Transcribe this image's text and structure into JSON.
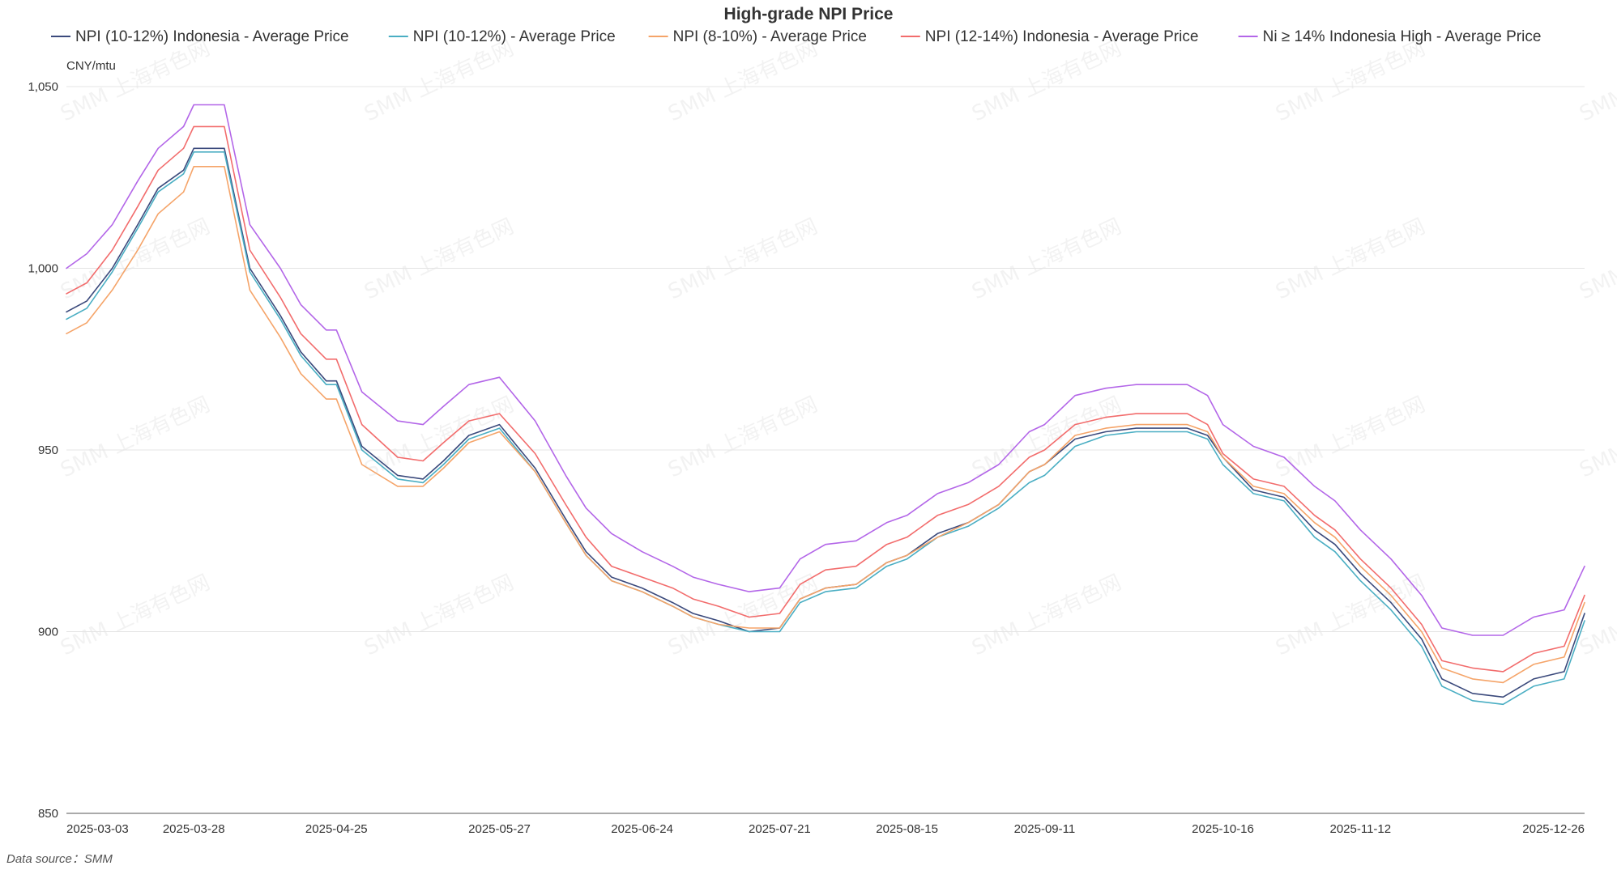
{
  "chart_data": {
    "type": "line",
    "title": "High-grade NPI Price",
    "ylabel": "CNY/mtu",
    "xlabel": "",
    "ylim": [
      850,
      1050
    ],
    "yticks": [
      850,
      900,
      950,
      1000,
      1050
    ],
    "ytick_labels": [
      "850",
      "900",
      "950",
      "1,000",
      "1,050"
    ],
    "x_tick_labels": [
      "2025-03-03",
      "2025-03-28",
      "2025-04-25",
      "2025-05-27",
      "2025-06-24",
      "2025-07-21",
      "2025-08-15",
      "2025-09-11",
      "2025-10-16",
      "2025-11-12",
      "2025-12-26"
    ],
    "grid": true,
    "legend_position": "top",
    "source": "Data source：SMM",
    "watermark": "SMM 上海有色网",
    "x": [
      "2025-03-03",
      "2025-03-07",
      "2025-03-12",
      "2025-03-17",
      "2025-03-21",
      "2025-03-26",
      "2025-03-28",
      "2025-04-03",
      "2025-04-08",
      "2025-04-14",
      "2025-04-18",
      "2025-04-23",
      "2025-04-25",
      "2025-04-30",
      "2025-05-07",
      "2025-05-12",
      "2025-05-16",
      "2025-05-21",
      "2025-05-27",
      "2025-06-03",
      "2025-06-09",
      "2025-06-13",
      "2025-06-18",
      "2025-06-24",
      "2025-06-30",
      "2025-07-04",
      "2025-07-09",
      "2025-07-15",
      "2025-07-21",
      "2025-07-25",
      "2025-07-30",
      "2025-08-05",
      "2025-08-11",
      "2025-08-15",
      "2025-08-21",
      "2025-08-27",
      "2025-09-02",
      "2025-09-08",
      "2025-09-11",
      "2025-09-17",
      "2025-09-23",
      "2025-09-29",
      "2025-10-09",
      "2025-10-13",
      "2025-10-16",
      "2025-10-22",
      "2025-10-28",
      "2025-11-03",
      "2025-11-07",
      "2025-11-12",
      "2025-11-18",
      "2025-11-24",
      "2025-11-28",
      "2025-12-04",
      "2025-12-10",
      "2025-12-16",
      "2025-12-22",
      "2025-12-26"
    ],
    "series": [
      {
        "name": "NPI (10-12%) Indonesia - Average Price",
        "color": "#3b4a7c",
        "values": [
          988,
          991,
          1000,
          1012,
          1022,
          1027,
          1033,
          1033,
          1000,
          987,
          977,
          969,
          969,
          951,
          943,
          942,
          947,
          954,
          957,
          945,
          931,
          922,
          915,
          912,
          908,
          905,
          903,
          900,
          901,
          909,
          912,
          913,
          919,
          921,
          927,
          930,
          935,
          944,
          946,
          953,
          955,
          956,
          956,
          954,
          948,
          939,
          937,
          928,
          924,
          916,
          908,
          898,
          887,
          883,
          882,
          887,
          889,
          905
        ]
      },
      {
        "name": "NPI (10-12%) - Average Price",
        "color": "#4aaec3",
        "values": [
          986,
          989,
          999,
          1011,
          1021,
          1026,
          1032,
          1032,
          999,
          986,
          976,
          968,
          968,
          950,
          942,
          941,
          946,
          953,
          956,
          944,
          930,
          921,
          914,
          911,
          907,
          904,
          902,
          900,
          900,
          908,
          911,
          912,
          918,
          920,
          926,
          929,
          934,
          941,
          943,
          951,
          954,
          955,
          955,
          953,
          946,
          938,
          936,
          926,
          922,
          914,
          906,
          896,
          885,
          881,
          880,
          885,
          887,
          903
        ]
      },
      {
        "name": "NPI (8-10%) - Average Price",
        "color": "#f5a469",
        "values": [
          982,
          985,
          994,
          1005,
          1015,
          1021,
          1028,
          1028,
          994,
          981,
          971,
          964,
          964,
          946,
          940,
          940,
          945,
          952,
          955,
          944,
          930,
          921,
          914,
          911,
          907,
          904,
          902,
          901,
          901,
          909,
          912,
          913,
          919,
          921,
          926,
          930,
          935,
          944,
          946,
          954,
          956,
          957,
          957,
          955,
          948,
          940,
          938,
          930,
          926,
          918,
          910,
          900,
          890,
          887,
          886,
          891,
          893,
          908
        ]
      },
      {
        "name": "NPI (12-14%) Indonesia - Average Price",
        "color": "#f26c6c",
        "values": [
          993,
          996,
          1005,
          1017,
          1027,
          1033,
          1039,
          1039,
          1005,
          992,
          982,
          975,
          975,
          957,
          948,
          947,
          952,
          958,
          960,
          949,
          935,
          926,
          918,
          915,
          912,
          909,
          907,
          904,
          905,
          913,
          917,
          918,
          924,
          926,
          932,
          935,
          940,
          948,
          950,
          957,
          959,
          960,
          960,
          957,
          949,
          942,
          940,
          932,
          928,
          920,
          912,
          902,
          892,
          890,
          889,
          894,
          896,
          910
        ]
      },
      {
        "name": "Ni ≥ 14% Indonesia High - Average Price",
        "color": "#b366e8",
        "values": [
          1000,
          1004,
          1012,
          1024,
          1033,
          1039,
          1045,
          1045,
          1012,
          1000,
          990,
          983,
          983,
          966,
          958,
          957,
          962,
          968,
          970,
          958,
          943,
          934,
          927,
          922,
          918,
          915,
          913,
          911,
          912,
          920,
          924,
          925,
          930,
          932,
          938,
          941,
          946,
          955,
          957,
          965,
          967,
          968,
          968,
          965,
          957,
          951,
          948,
          940,
          936,
          928,
          920,
          910,
          901,
          899,
          899,
          904,
          906,
          918
        ]
      }
    ]
  }
}
